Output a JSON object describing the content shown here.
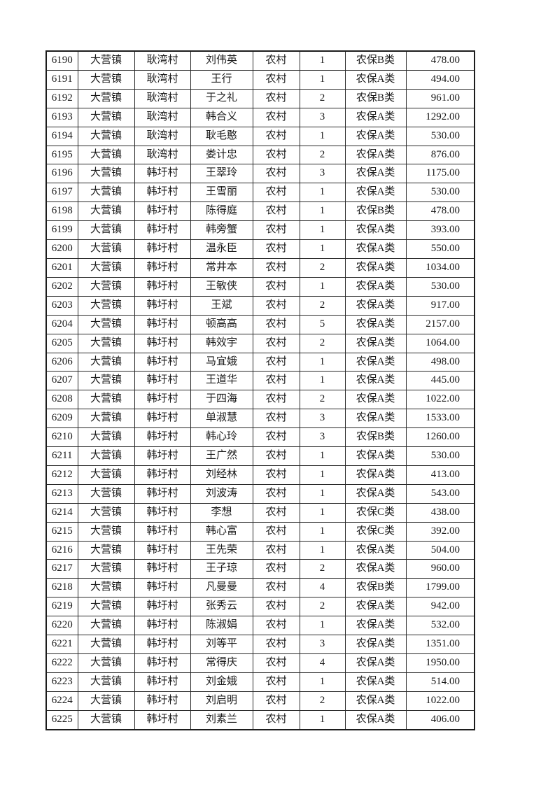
{
  "colors": {
    "page_background": "#ffffff",
    "table_border": "#1c1c1c",
    "text": "#1a1a1a"
  },
  "table": {
    "columns": [
      "serial-number",
      "town",
      "village",
      "person-name",
      "household-type",
      "person-count",
      "insurance-class",
      "amount"
    ],
    "rows": [
      [
        "6190",
        "大营镇",
        "耿湾村",
        "刘伟英",
        "农村",
        "1",
        "农保B类",
        "478.00"
      ],
      [
        "6191",
        "大营镇",
        "耿湾村",
        "王行",
        "农村",
        "1",
        "农保A类",
        "494.00"
      ],
      [
        "6192",
        "大营镇",
        "耿湾村",
        "于之礼",
        "农村",
        "2",
        "农保B类",
        "961.00"
      ],
      [
        "6193",
        "大营镇",
        "耿湾村",
        "韩合义",
        "农村",
        "3",
        "农保A类",
        "1292.00"
      ],
      [
        "6194",
        "大营镇",
        "耿湾村",
        "耿毛憨",
        "农村",
        "1",
        "农保A类",
        "530.00"
      ],
      [
        "6195",
        "大营镇",
        "耿湾村",
        "娄计忠",
        "农村",
        "2",
        "农保A类",
        "876.00"
      ],
      [
        "6196",
        "大营镇",
        "韩圩村",
        "王翠玲",
        "农村",
        "3",
        "农保A类",
        "1175.00"
      ],
      [
        "6197",
        "大营镇",
        "韩圩村",
        "王雪丽",
        "农村",
        "1",
        "农保A类",
        "530.00"
      ],
      [
        "6198",
        "大营镇",
        "韩圩村",
        "陈得庭",
        "农村",
        "1",
        "农保B类",
        "478.00"
      ],
      [
        "6199",
        "大营镇",
        "韩圩村",
        "韩旁蟹",
        "农村",
        "1",
        "农保A类",
        "393.00"
      ],
      [
        "6200",
        "大营镇",
        "韩圩村",
        "温永臣",
        "农村",
        "1",
        "农保A类",
        "550.00"
      ],
      [
        "6201",
        "大营镇",
        "韩圩村",
        "常井本",
        "农村",
        "2",
        "农保A类",
        "1034.00"
      ],
      [
        "6202",
        "大营镇",
        "韩圩村",
        "王敏侠",
        "农村",
        "1",
        "农保A类",
        "530.00"
      ],
      [
        "6203",
        "大营镇",
        "韩圩村",
        "王斌",
        "农村",
        "2",
        "农保A类",
        "917.00"
      ],
      [
        "6204",
        "大营镇",
        "韩圩村",
        "顿高高",
        "农村",
        "5",
        "农保A类",
        "2157.00"
      ],
      [
        "6205",
        "大营镇",
        "韩圩村",
        "韩效宇",
        "农村",
        "2",
        "农保A类",
        "1064.00"
      ],
      [
        "6206",
        "大营镇",
        "韩圩村",
        "马宜娥",
        "农村",
        "1",
        "农保A类",
        "498.00"
      ],
      [
        "6207",
        "大营镇",
        "韩圩村",
        "王道华",
        "农村",
        "1",
        "农保A类",
        "445.00"
      ],
      [
        "6208",
        "大营镇",
        "韩圩村",
        "于四海",
        "农村",
        "2",
        "农保A类",
        "1022.00"
      ],
      [
        "6209",
        "大营镇",
        "韩圩村",
        "单淑慧",
        "农村",
        "3",
        "农保A类",
        "1533.00"
      ],
      [
        "6210",
        "大营镇",
        "韩圩村",
        "韩心玲",
        "农村",
        "3",
        "农保B类",
        "1260.00"
      ],
      [
        "6211",
        "大营镇",
        "韩圩村",
        "王广然",
        "农村",
        "1",
        "农保A类",
        "530.00"
      ],
      [
        "6212",
        "大营镇",
        "韩圩村",
        "刘经林",
        "农村",
        "1",
        "农保A类",
        "413.00"
      ],
      [
        "6213",
        "大营镇",
        "韩圩村",
        "刘波涛",
        "农村",
        "1",
        "农保A类",
        "543.00"
      ],
      [
        "6214",
        "大营镇",
        "韩圩村",
        "李想",
        "农村",
        "1",
        "农保C类",
        "438.00"
      ],
      [
        "6215",
        "大营镇",
        "韩圩村",
        "韩心富",
        "农村",
        "1",
        "农保C类",
        "392.00"
      ],
      [
        "6216",
        "大营镇",
        "韩圩村",
        "王先荣",
        "农村",
        "1",
        "农保A类",
        "504.00"
      ],
      [
        "6217",
        "大营镇",
        "韩圩村",
        "王子琼",
        "农村",
        "2",
        "农保A类",
        "960.00"
      ],
      [
        "6218",
        "大营镇",
        "韩圩村",
        "凡曼曼",
        "农村",
        "4",
        "农保B类",
        "1799.00"
      ],
      [
        "6219",
        "大营镇",
        "韩圩村",
        "张秀云",
        "农村",
        "2",
        "农保A类",
        "942.00"
      ],
      [
        "6220",
        "大营镇",
        "韩圩村",
        "陈淑娟",
        "农村",
        "1",
        "农保A类",
        "532.00"
      ],
      [
        "6221",
        "大营镇",
        "韩圩村",
        "刘等平",
        "农村",
        "3",
        "农保A类",
        "1351.00"
      ],
      [
        "6222",
        "大营镇",
        "韩圩村",
        "常得庆",
        "农村",
        "4",
        "农保A类",
        "1950.00"
      ],
      [
        "6223",
        "大营镇",
        "韩圩村",
        "刘金娥",
        "农村",
        "1",
        "农保A类",
        "514.00"
      ],
      [
        "6224",
        "大营镇",
        "韩圩村",
        "刘启明",
        "农村",
        "2",
        "农保A类",
        "1022.00"
      ],
      [
        "6225",
        "大营镇",
        "韩圩村",
        "刘素兰",
        "农村",
        "1",
        "农保A类",
        "406.00"
      ]
    ]
  }
}
